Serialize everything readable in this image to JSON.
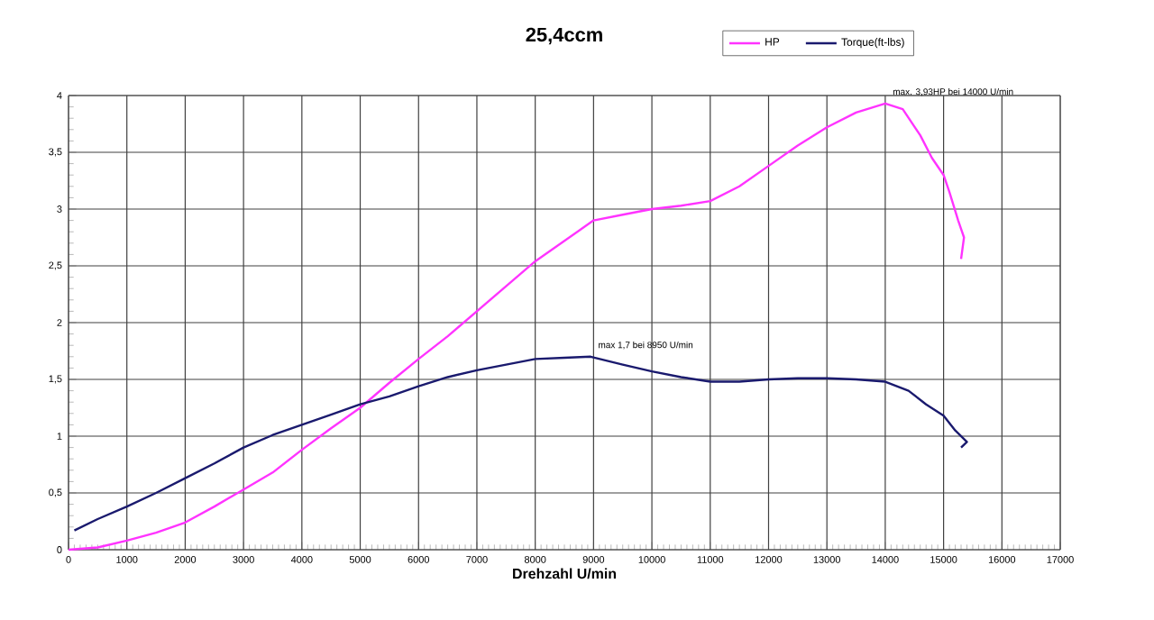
{
  "chart_data": {
    "type": "line",
    "title": "25,4ccm",
    "xlabel": "Drehzahl U/min",
    "xlim": [
      0,
      17000
    ],
    "ylim": [
      0,
      4
    ],
    "xticks": [
      0,
      1000,
      2000,
      3000,
      4000,
      5000,
      6000,
      7000,
      8000,
      9000,
      10000,
      11000,
      12000,
      13000,
      14000,
      15000,
      16000,
      17000
    ],
    "yticks": [
      0,
      {
        "value": 0.5,
        "label": "0,5"
      },
      1,
      {
        "value": 1.5,
        "label": "1,5"
      },
      2,
      {
        "value": 2.5,
        "label": "2,5"
      },
      3,
      {
        "value": 3.5,
        "label": "3,5"
      },
      4
    ],
    "grid": true,
    "legend": "top",
    "marker": "none",
    "line_style": "solid",
    "series": [
      {
        "name": "HP",
        "color": "#ff33ff",
        "x": [
          0,
          500,
          1000,
          1500,
          2000,
          2500,
          3000,
          3500,
          4000,
          4500,
          5000,
          5500,
          6000,
          6500,
          7000,
          7500,
          8000,
          8500,
          9000,
          9500,
          10000,
          10500,
          11000,
          11500,
          12000,
          12500,
          13000,
          13500,
          14000,
          14300,
          14600,
          14800,
          15000,
          15100,
          15250,
          15350,
          15300
        ],
        "values": [
          0,
          0.02,
          0.08,
          0.15,
          0.24,
          0.38,
          0.53,
          0.68,
          0.88,
          1.07,
          1.25,
          1.47,
          1.68,
          1.88,
          2.1,
          2.32,
          2.54,
          2.72,
          2.9,
          2.95,
          3.0,
          3.03,
          3.07,
          3.2,
          3.38,
          3.56,
          3.72,
          3.85,
          3.93,
          3.88,
          3.65,
          3.45,
          3.3,
          3.15,
          2.9,
          2.75,
          2.56
        ]
      },
      {
        "name": "Torque(ft-lbs)",
        "color": "#1a1a6e",
        "x": [
          100,
          500,
          1000,
          1500,
          2000,
          2500,
          3000,
          3500,
          4000,
          4500,
          5000,
          5500,
          6000,
          6500,
          7000,
          7500,
          8000,
          8500,
          8950,
          9500,
          10000,
          10500,
          11000,
          11500,
          12000,
          12500,
          13000,
          13500,
          14000,
          14400,
          14700,
          15000,
          15200,
          15400,
          15300
        ],
        "values": [
          0.17,
          0.27,
          0.38,
          0.5,
          0.63,
          0.76,
          0.9,
          1.01,
          1.1,
          1.19,
          1.28,
          1.35,
          1.44,
          1.52,
          1.58,
          1.63,
          1.68,
          1.69,
          1.7,
          1.63,
          1.57,
          1.52,
          1.48,
          1.48,
          1.5,
          1.51,
          1.51,
          1.5,
          1.48,
          1.4,
          1.28,
          1.18,
          1.05,
          0.95,
          0.9
        ]
      }
    ],
    "annotations": [
      {
        "text": "max. 3,93HP bei 14000 U/min",
        "x": 14000,
        "y": 3.93
      },
      {
        "text": "max 1,7 bei 8950 U/min",
        "x": 8950,
        "y": 1.7
      }
    ]
  }
}
